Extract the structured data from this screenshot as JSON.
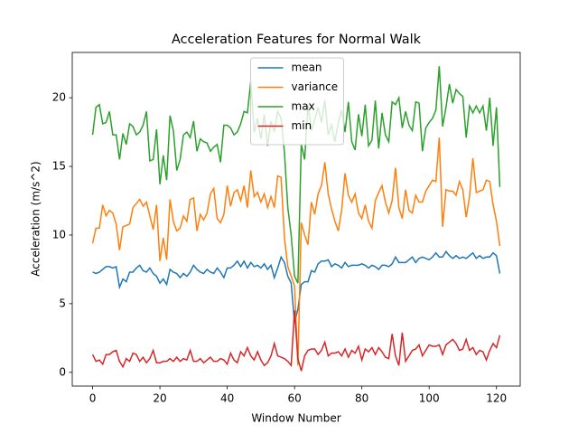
{
  "chart_data": {
    "type": "line",
    "title": "Acceleration Features for Normal Walk",
    "xlabel": "Window Number",
    "ylabel": "Acceleration (m/s^2)",
    "x": [
      0,
      1,
      2,
      3,
      4,
      5,
      6,
      7,
      8,
      9,
      10,
      11,
      12,
      13,
      14,
      15,
      16,
      17,
      18,
      19,
      20,
      21,
      22,
      23,
      24,
      25,
      26,
      27,
      28,
      29,
      30,
      31,
      32,
      33,
      34,
      35,
      36,
      37,
      38,
      39,
      40,
      41,
      42,
      43,
      44,
      45,
      46,
      47,
      48,
      49,
      50,
      51,
      52,
      53,
      54,
      55,
      56,
      57,
      58,
      59,
      60,
      61,
      62,
      63,
      64,
      65,
      66,
      67,
      68,
      69,
      70,
      71,
      72,
      73,
      74,
      75,
      76,
      77,
      78,
      79,
      80,
      81,
      82,
      83,
      84,
      85,
      86,
      87,
      88,
      89,
      90,
      91,
      92,
      93,
      94,
      95,
      96,
      97,
      98,
      99,
      100,
      101,
      102,
      103,
      104,
      105,
      106,
      107,
      108,
      109,
      110,
      111,
      112,
      113,
      114,
      115,
      116,
      117,
      118,
      119,
      120,
      121
    ],
    "series": [
      {
        "name": "mean",
        "color": "#1f77b4",
        "values": [
          7.3,
          7.2,
          7.3,
          7.5,
          7.7,
          7.7,
          7.6,
          7.7,
          6.2,
          6.8,
          6.6,
          7.3,
          7.3,
          7.6,
          7.8,
          7.4,
          7.3,
          7.6,
          7.2,
          7.0,
          6.5,
          6.8,
          6.4,
          7.5,
          7.3,
          7.2,
          6.9,
          7.2,
          7.0,
          7.3,
          7.8,
          7.5,
          7.3,
          7.2,
          7.5,
          7.3,
          7.2,
          7.6,
          7.3,
          6.9,
          7.6,
          7.6,
          7.8,
          8.1,
          7.7,
          8.1,
          7.6,
          8.0,
          7.7,
          7.8,
          7.6,
          7.9,
          7.5,
          7.8,
          6.9,
          7.6,
          8.4,
          8.0,
          7.0,
          6.5,
          3.6,
          4.6,
          6.4,
          6.6,
          6.6,
          7.4,
          7.3,
          7.9,
          8.1,
          8.1,
          8.2,
          7.7,
          7.9,
          7.8,
          7.6,
          8.0,
          7.7,
          7.8,
          7.8,
          7.8,
          7.9,
          7.8,
          7.6,
          7.8,
          7.7,
          7.5,
          7.8,
          7.8,
          7.7,
          7.9,
          8.4,
          8.0,
          8.0,
          8.0,
          8.2,
          8.4,
          8.0,
          8.3,
          8.4,
          8.3,
          8.2,
          8.4,
          8.7,
          8.4,
          8.4,
          8.8,
          8.5,
          8.3,
          8.5,
          8.3,
          8.4,
          8.3,
          8.5,
          8.7,
          8.3,
          8.5,
          8.3,
          8.4,
          8.4,
          8.7,
          8.5,
          7.2
        ]
      },
      {
        "name": "variance",
        "color": "#ff7f0e",
        "values": [
          9.4,
          10.5,
          10.5,
          12.2,
          11.4,
          11.8,
          11.6,
          10.8,
          8.9,
          10.6,
          10.7,
          10.8,
          12.0,
          12.3,
          12.6,
          12.1,
          12.4,
          11.4,
          10.4,
          12.2,
          8.1,
          9.8,
          8.2,
          12.6,
          11.0,
          10.3,
          10.5,
          11.4,
          11.0,
          12.6,
          12.7,
          10.3,
          11.5,
          11.1,
          11.6,
          13.0,
          13.4,
          11.2,
          10.9,
          11.5,
          13.6,
          12.1,
          13.1,
          13.3,
          12.5,
          13.6,
          12.0,
          14.7,
          12.8,
          13.1,
          12.4,
          13.0,
          12.0,
          12.8,
          12.0,
          14.3,
          14.2,
          9.8,
          7.7,
          7.0,
          6.3,
          0.5,
          10.9,
          10.0,
          9.3,
          12.4,
          11.5,
          13.0,
          13.6,
          15.3,
          13.0,
          11.9,
          11.0,
          10.3,
          11.8,
          14.5,
          12.9,
          12.4,
          13.0,
          11.6,
          11.2,
          12.2,
          11.0,
          10.5,
          12.5,
          13.1,
          13.6,
          12.4,
          11.6,
          12.5,
          14.9,
          12.0,
          11.2,
          13.3,
          11.8,
          11.6,
          12.9,
          12.4,
          12.4,
          13.2,
          13.6,
          14.0,
          13.9,
          17.1,
          10.6,
          13.3,
          13.2,
          13.2,
          12.9,
          13.9,
          13.3,
          11.3,
          12.8,
          15.6,
          13.1,
          13.2,
          13.3,
          14.0,
          13.9,
          12.2,
          11.0,
          9.2
        ]
      },
      {
        "name": "max",
        "color": "#2ca02c",
        "values": [
          17.3,
          19.3,
          19.5,
          18.1,
          18.2,
          19.0,
          17.3,
          17.3,
          15.5,
          17.4,
          16.6,
          18.1,
          17.9,
          17.3,
          17.5,
          18.0,
          19.0,
          15.4,
          15.5,
          17.7,
          13.7,
          15.8,
          14.0,
          18.7,
          17.6,
          14.7,
          15.5,
          17.3,
          17.5,
          17.1,
          18.3,
          16.1,
          17.0,
          16.8,
          16.7,
          16.1,
          16.4,
          16.6,
          15.3,
          18.0,
          18.0,
          17.8,
          17.3,
          17.5,
          18.1,
          19.0,
          18.9,
          21.2,
          17.5,
          18.5,
          17.0,
          18.8,
          16.5,
          18.3,
          17.5,
          19.0,
          18.5,
          16.0,
          12.0,
          10.0,
          7.0,
          6.5,
          16.6,
          15.5,
          19.5,
          17.6,
          18.4,
          19.3,
          18.2,
          19.8,
          17.3,
          18.0,
          16.8,
          18.2,
          19.1,
          17.5,
          19.7,
          16.8,
          16.2,
          18.8,
          17.2,
          19.5,
          16.5,
          16.9,
          19.8,
          16.3,
          18.9,
          17.3,
          16.8,
          19.7,
          19.5,
          20.0,
          17.8,
          19.0,
          18.0,
          17.6,
          19.7,
          19.6,
          16.1,
          17.8,
          18.2,
          18.5,
          19.1,
          22.3,
          17.9,
          19.3,
          21.0,
          19.6,
          20.6,
          20.3,
          20.1,
          17.1,
          19.4,
          18.9,
          19.4,
          18.9,
          19.4,
          17.6,
          20.0,
          16.5,
          19.3,
          13.5
        ]
      },
      {
        "name": "min",
        "color": "#d62728",
        "values": [
          1.3,
          0.8,
          0.9,
          0.6,
          1.3,
          1.3,
          1.5,
          1.6,
          0.8,
          0.4,
          1.0,
          0.8,
          1.4,
          1.3,
          0.8,
          1.1,
          0.7,
          1.0,
          1.6,
          0.7,
          0.7,
          0.8,
          0.8,
          1.0,
          0.8,
          1.1,
          0.8,
          1.0,
          0.9,
          1.6,
          0.8,
          0.8,
          1.0,
          0.7,
          0.9,
          1.1,
          0.8,
          0.8,
          1.0,
          0.9,
          0.6,
          1.4,
          0.9,
          0.7,
          1.5,
          1.2,
          1.8,
          1.2,
          0.9,
          1.5,
          0.9,
          0.5,
          0.7,
          1.2,
          2.1,
          1.2,
          1.1,
          1.0,
          0.8,
          0.5,
          4.5,
          1.0,
          0.1,
          1.2,
          1.6,
          1.7,
          1.7,
          1.3,
          1.6,
          2.2,
          1.2,
          1.4,
          1.4,
          1.5,
          1.2,
          1.7,
          1.1,
          1.6,
          1.4,
          1.9,
          0.9,
          1.7,
          1.5,
          1.8,
          1.3,
          1.8,
          1.5,
          1.1,
          1.0,
          2.8,
          1.2,
          0.5,
          2.9,
          0.8,
          1.2,
          1.6,
          1.7,
          2.0,
          1.2,
          1.6,
          2.0,
          1.9,
          1.9,
          2.0,
          1.3,
          2.0,
          2.2,
          2.4,
          2.1,
          1.6,
          1.7,
          2.4,
          1.6,
          1.8,
          1.3,
          1.6,
          1.5,
          0.9,
          1.6,
          2.1,
          1.8,
          2.7
        ]
      }
    ],
    "xlim": [
      -6.05,
      127.05
    ],
    "xticks": [
      0,
      20,
      40,
      60,
      80,
      100,
      120
    ],
    "ylim": [
      -1.0,
      23.3
    ],
    "yticks": [
      0,
      5,
      10,
      15,
      20
    ],
    "grid": false,
    "legend": "upper center"
  }
}
